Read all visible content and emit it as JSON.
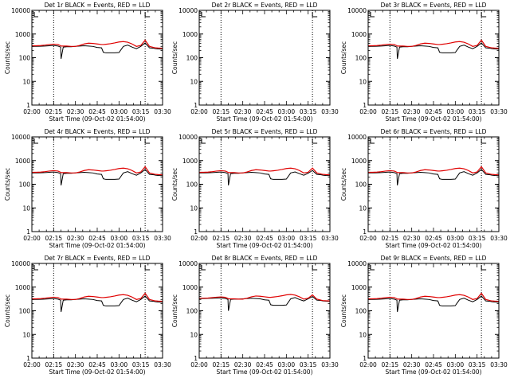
{
  "chart_data": {
    "type": "line",
    "layout": "3x3 grid of panels",
    "ylabel": "Counts/sec",
    "xlabel": "Start Time (09-Oct-02 01:54:00)",
    "y_scale": "log",
    "ylim": [
      1,
      10000
    ],
    "y_ticks": [
      1,
      10,
      100,
      1000,
      10000
    ],
    "y_tick_labels": [
      "1",
      "10",
      "100",
      "1000",
      "10000"
    ],
    "xlim": [
      2.0,
      3.5
    ],
    "x_ticks": [
      2.0,
      2.25,
      2.5,
      2.75,
      3.0,
      3.25,
      3.5
    ],
    "x_tick_labels": [
      "02:00",
      "02:15",
      "02:30",
      "02:45",
      "03:00",
      "03:15",
      "03:30"
    ],
    "vertical_dotted_lines": [
      2.25,
      3.3
    ],
    "series_names": [
      "Events (black)",
      "LLD (red)"
    ],
    "series_colors": [
      "#000000",
      "#e00000"
    ],
    "x": [
      2.0,
      2.05,
      2.1,
      2.15,
      2.2,
      2.25,
      2.3,
      2.33,
      2.335,
      2.36,
      2.4,
      2.45,
      2.5,
      2.55,
      2.6,
      2.65,
      2.7,
      2.75,
      2.8,
      2.82,
      2.85,
      2.9,
      2.95,
      3.0,
      3.05,
      3.1,
      3.15,
      3.2,
      3.25,
      3.3,
      3.35,
      3.4,
      3.42,
      3.45,
      3.5
    ],
    "panels": [
      {
        "title": "Det 1r BLACK = Events, RED = LLD",
        "has_data": true,
        "events": [
          300,
          300,
          305,
          310,
          320,
          330,
          310,
          280,
          90,
          280,
          290,
          290,
          300,
          310,
          320,
          310,
          300,
          270,
          260,
          170,
          160,
          160,
          160,
          165,
          300,
          340,
          280,
          240,
          300,
          420,
          260,
          250,
          240,
          235,
          230
        ],
        "lld": [
          320,
          320,
          325,
          340,
          360,
          375,
          360,
          320,
          310,
          310,
          310,
          300,
          300,
          330,
          380,
          410,
          400,
          380,
          360,
          360,
          370,
          390,
          420,
          460,
          480,
          450,
          380,
          300,
          330,
          550,
          300,
          270,
          260,
          255,
          250
        ]
      },
      {
        "title": "Det 2r BLACK = Events, RED = LLD",
        "has_data": false,
        "events": [],
        "lld": []
      },
      {
        "title": "Det 3r BLACK = Events, RED = LLD",
        "has_data": true,
        "events": [
          300,
          300,
          305,
          310,
          320,
          330,
          310,
          280,
          90,
          280,
          290,
          290,
          300,
          310,
          320,
          310,
          300,
          270,
          260,
          170,
          160,
          160,
          160,
          165,
          300,
          340,
          280,
          240,
          300,
          420,
          260,
          250,
          240,
          235,
          230
        ],
        "lld": [
          320,
          320,
          325,
          340,
          360,
          375,
          360,
          320,
          310,
          310,
          310,
          300,
          300,
          330,
          380,
          410,
          400,
          380,
          360,
          360,
          370,
          390,
          420,
          460,
          480,
          450,
          380,
          300,
          330,
          550,
          300,
          270,
          260,
          255,
          250
        ]
      },
      {
        "title": "Det 4r BLACK = Events, RED = LLD",
        "has_data": true,
        "events": [
          300,
          300,
          305,
          310,
          320,
          330,
          310,
          280,
          90,
          280,
          290,
          290,
          300,
          310,
          320,
          310,
          300,
          270,
          260,
          170,
          160,
          160,
          160,
          165,
          300,
          340,
          280,
          240,
          300,
          420,
          260,
          250,
          240,
          235,
          230
        ],
        "lld": [
          320,
          320,
          325,
          340,
          360,
          375,
          360,
          320,
          310,
          310,
          310,
          300,
          300,
          330,
          380,
          410,
          400,
          380,
          360,
          360,
          370,
          390,
          420,
          460,
          480,
          450,
          380,
          300,
          330,
          550,
          300,
          270,
          260,
          255,
          250
        ]
      },
      {
        "title": "Det 5r BLACK = Events, RED = LLD",
        "has_data": true,
        "events": [
          300,
          300,
          305,
          310,
          320,
          330,
          310,
          280,
          90,
          280,
          290,
          290,
          300,
          310,
          320,
          310,
          300,
          270,
          260,
          170,
          160,
          160,
          160,
          165,
          300,
          330,
          280,
          240,
          290,
          380,
          260,
          250,
          240,
          235,
          230
        ],
        "lld": [
          320,
          320,
          325,
          340,
          360,
          375,
          360,
          320,
          310,
          310,
          310,
          300,
          300,
          330,
          380,
          410,
          400,
          380,
          360,
          360,
          370,
          390,
          420,
          460,
          480,
          450,
          380,
          300,
          320,
          480,
          300,
          270,
          260,
          255,
          250
        ]
      },
      {
        "title": "Det 6r BLACK = Events, RED = LLD",
        "has_data": true,
        "events": [
          300,
          300,
          305,
          310,
          320,
          330,
          310,
          280,
          90,
          280,
          290,
          290,
          300,
          310,
          320,
          310,
          300,
          270,
          260,
          170,
          160,
          160,
          160,
          165,
          300,
          340,
          280,
          240,
          300,
          420,
          260,
          250,
          240,
          235,
          230
        ],
        "lld": [
          320,
          320,
          325,
          340,
          360,
          375,
          360,
          320,
          310,
          310,
          310,
          300,
          300,
          330,
          380,
          410,
          400,
          380,
          360,
          360,
          370,
          390,
          420,
          460,
          480,
          450,
          380,
          300,
          330,
          550,
          300,
          270,
          260,
          255,
          250
        ]
      },
      {
        "title": "Det 7r BLACK = Events, RED = LLD",
        "has_data": true,
        "events": [
          300,
          300,
          305,
          310,
          320,
          330,
          310,
          280,
          90,
          280,
          290,
          290,
          300,
          310,
          320,
          310,
          300,
          270,
          260,
          170,
          160,
          160,
          160,
          165,
          300,
          340,
          280,
          240,
          300,
          420,
          260,
          250,
          240,
          235,
          230
        ],
        "lld": [
          320,
          320,
          325,
          340,
          360,
          375,
          360,
          320,
          310,
          310,
          310,
          300,
          300,
          330,
          380,
          410,
          400,
          380,
          360,
          360,
          370,
          390,
          420,
          460,
          480,
          450,
          380,
          300,
          330,
          550,
          300,
          270,
          260,
          255,
          250
        ]
      },
      {
        "title": "Det 8r BLACK = Events, RED = LLD",
        "has_data": true,
        "events": [
          330,
          330,
          335,
          340,
          345,
          350,
          330,
          300,
          100,
          300,
          310,
          310,
          320,
          330,
          340,
          330,
          320,
          290,
          280,
          180,
          170,
          170,
          170,
          175,
          320,
          360,
          300,
          260,
          320,
          400,
          280,
          270,
          260,
          255,
          250
        ],
        "lld": [
          340,
          340,
          345,
          360,
          375,
          385,
          370,
          330,
          320,
          320,
          320,
          310,
          310,
          340,
          390,
          420,
          410,
          390,
          370,
          370,
          380,
          400,
          430,
          470,
          490,
          460,
          390,
          310,
          340,
          470,
          310,
          280,
          270,
          265,
          260
        ]
      },
      {
        "title": "Det 9r BLACK = Events, RED = LLD",
        "has_data": true,
        "events": [
          300,
          300,
          305,
          310,
          320,
          330,
          310,
          280,
          90,
          280,
          290,
          290,
          300,
          310,
          320,
          310,
          300,
          270,
          260,
          170,
          160,
          160,
          160,
          165,
          300,
          340,
          280,
          240,
          300,
          420,
          260,
          250,
          240,
          235,
          230
        ],
        "lld": [
          320,
          320,
          325,
          340,
          360,
          375,
          360,
          320,
          310,
          310,
          310,
          300,
          300,
          330,
          380,
          410,
          400,
          380,
          360,
          360,
          370,
          390,
          420,
          460,
          480,
          450,
          380,
          300,
          330,
          550,
          300,
          270,
          260,
          255,
          250
        ]
      }
    ]
  }
}
